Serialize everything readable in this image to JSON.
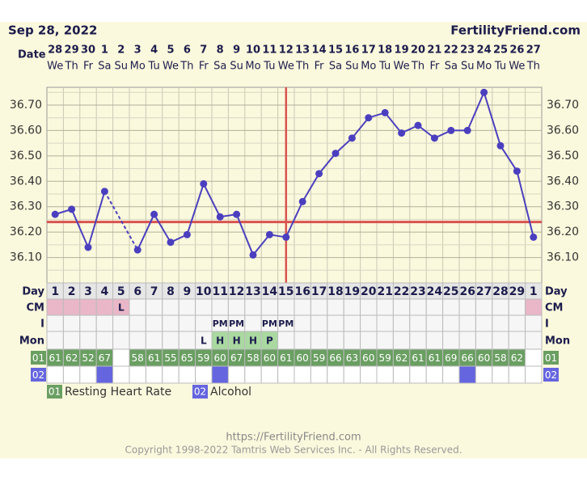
{
  "header": {
    "date": "Sep 28, 2022",
    "site": "FertilityFriend.com"
  },
  "chart_data": {
    "type": "line",
    "date_label": "Date",
    "categories": [
      "28",
      "29",
      "30",
      "1",
      "2",
      "3",
      "4",
      "5",
      "6",
      "7",
      "8",
      "9",
      "10",
      "11",
      "12",
      "13",
      "14",
      "15",
      "16",
      "17",
      "18",
      "19",
      "20",
      "21",
      "22",
      "23",
      "24",
      "25",
      "26",
      "27"
    ],
    "weekdays": [
      "We",
      "Th",
      "Fr",
      "Sa",
      "Su",
      "Mo",
      "Tu",
      "We",
      "Th",
      "Fr",
      "Sa",
      "Su",
      "Mo",
      "Tu",
      "We",
      "Th",
      "Fr",
      "Sa",
      "Su",
      "Mo",
      "Tu",
      "We",
      "Th",
      "Fr",
      "Sa",
      "Su",
      "Mo",
      "Tu",
      "We",
      "Th"
    ],
    "values": [
      36.27,
      36.29,
      36.14,
      36.36,
      null,
      36.13,
      36.27,
      36.16,
      36.19,
      36.39,
      36.26,
      36.27,
      36.11,
      36.19,
      36.18,
      36.32,
      36.43,
      36.51,
      36.57,
      36.65,
      36.67,
      36.59,
      36.62,
      36.57,
      36.6,
      36.6,
      36.75,
      36.54,
      36.44,
      36.18
    ],
    "color": "#4b3fbf",
    "ylim": [
      36.0,
      36.77
    ],
    "yticks": [
      {
        "value": 36.1,
        "label": "36.10"
      },
      {
        "value": 36.2,
        "label": "36.20"
      },
      {
        "value": 36.3,
        "label": "36.30"
      },
      {
        "value": 36.4,
        "label": "36.40"
      },
      {
        "value": 36.5,
        "label": "36.50"
      },
      {
        "value": 36.6,
        "label": "36.60"
      },
      {
        "value": 36.7,
        "label": "36.70"
      }
    ],
    "minor_yticks": [
      36.05,
      36.15,
      36.25,
      36.35,
      36.45,
      36.55,
      36.65,
      36.75
    ],
    "grid": true,
    "coverline": 36.24,
    "line_marker_color": "#d9534f",
    "ovulation_day": 15
  },
  "rows": {
    "day_label": "Day",
    "cycle_days": [
      1,
      2,
      3,
      4,
      5,
      6,
      7,
      8,
      9,
      10,
      11,
      12,
      13,
      14,
      15,
      16,
      17,
      18,
      19,
      20,
      21,
      22,
      23,
      24,
      25,
      26,
      27,
      28,
      29,
      1
    ],
    "cm_label": "CM",
    "cm": [
      null,
      null,
      null,
      null,
      "L",
      null,
      null,
      null,
      null,
      null,
      null,
      null,
      null,
      null,
      null,
      null,
      null,
      null,
      null,
      null,
      null,
      null,
      null,
      null,
      null,
      null,
      null,
      null,
      null,
      null
    ],
    "period": [
      true,
      true,
      true,
      true,
      true,
      false,
      false,
      false,
      false,
      false,
      false,
      false,
      false,
      false,
      false,
      false,
      false,
      false,
      false,
      false,
      false,
      false,
      false,
      false,
      false,
      false,
      false,
      false,
      false,
      true
    ],
    "i_label": "I",
    "i": [
      null,
      null,
      null,
      null,
      null,
      null,
      null,
      null,
      null,
      null,
      "PM",
      "PM",
      null,
      "PM",
      "PM",
      null,
      null,
      null,
      null,
      null,
      null,
      null,
      null,
      null,
      null,
      null,
      null,
      null,
      null,
      null
    ],
    "mon_label": "Mon",
    "mon": [
      null,
      null,
      null,
      null,
      null,
      null,
      null,
      null,
      null,
      "L",
      "H",
      "H",
      "H",
      "P",
      null,
      null,
      null,
      null,
      null,
      null,
      null,
      null,
      null,
      null,
      null,
      null,
      null,
      null,
      null,
      null
    ],
    "heart_rate": {
      "code": "01",
      "name": "Resting Heart Rate",
      "color": "#6a9f62",
      "values": [
        61,
        62,
        52,
        67,
        null,
        58,
        61,
        55,
        65,
        59,
        60,
        67,
        58,
        60,
        61,
        60,
        59,
        66,
        63,
        60,
        59,
        62,
        61,
        61,
        69,
        66,
        60,
        58,
        62,
        null
      ]
    },
    "alcohol": {
      "code": "02",
      "name": "Alcohol",
      "color": "#6565e0",
      "days": [
        false,
        false,
        false,
        true,
        false,
        false,
        false,
        false,
        false,
        false,
        true,
        false,
        false,
        false,
        false,
        false,
        false,
        false,
        false,
        false,
        false,
        false,
        false,
        false,
        false,
        true,
        false,
        false,
        false,
        false
      ]
    }
  },
  "footer": {
    "url": "https://FertilityFriend.com",
    "copyright": "Copyright 1998-2022 Tamtris Web Services Inc. - All Rights Reserved."
  }
}
